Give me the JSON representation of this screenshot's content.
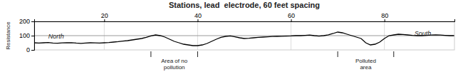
{
  "chart_data": {
    "type": "line",
    "title": "Stations, lead  electrode, 60 feet spacing",
    "ylabel": "Resistance",
    "color": "#000000",
    "xlim": [
      5,
      95
    ],
    "ylim": [
      0,
      200
    ],
    "xticks": [
      20,
      40,
      60,
      80
    ],
    "yticks": [
      0,
      100,
      200
    ],
    "grid": "x",
    "hline": 100,
    "annotations": [
      {
        "text": "North",
        "x": 8,
        "y": 90
      },
      {
        "text": "South",
        "x": 90,
        "y": 110
      }
    ],
    "spans": [
      {
        "text": "Area of no\npollution",
        "x": 35,
        "from": 30,
        "to": 40
      },
      {
        "text": "Polluted\narea",
        "x": 76,
        "from": 70,
        "to": 82
      }
    ],
    "x": [
      5,
      6,
      7,
      8,
      9,
      10,
      11,
      12,
      13,
      14,
      15,
      16,
      17,
      18,
      19,
      20,
      21,
      22,
      23,
      24,
      25,
      26,
      27,
      28,
      29,
      30,
      31,
      32,
      33,
      34,
      35,
      36,
      37,
      38,
      39,
      40,
      41,
      42,
      43,
      44,
      45,
      46,
      47,
      48,
      49,
      50,
      51,
      52,
      53,
      54,
      55,
      56,
      57,
      58,
      59,
      60,
      61,
      62,
      63,
      64,
      65,
      66,
      67,
      68,
      69,
      70,
      71,
      72,
      73,
      74,
      75,
      76,
      77,
      78,
      79,
      80,
      81,
      82,
      83,
      84,
      85,
      86,
      87,
      88,
      89,
      90,
      91,
      92,
      93,
      94,
      95
    ],
    "values": [
      50,
      48,
      50,
      52,
      48,
      47,
      49,
      50,
      51,
      48,
      46,
      48,
      50,
      49,
      48,
      50,
      52,
      55,
      58,
      62,
      65,
      70,
      75,
      80,
      88,
      98,
      105,
      100,
      90,
      75,
      60,
      50,
      40,
      35,
      30,
      30,
      35,
      45,
      60,
      75,
      88,
      95,
      98,
      92,
      85,
      80,
      82,
      85,
      88,
      90,
      92,
      94,
      95,
      96,
      97,
      98,
      100,
      100,
      102,
      104,
      100,
      97,
      100,
      106,
      115,
      125,
      120,
      110,
      100,
      90,
      80,
      50,
      35,
      40,
      55,
      80,
      100,
      105,
      110,
      108,
      105,
      102,
      100,
      100,
      102,
      104,
      106,
      104,
      102,
      100,
      100
    ]
  }
}
